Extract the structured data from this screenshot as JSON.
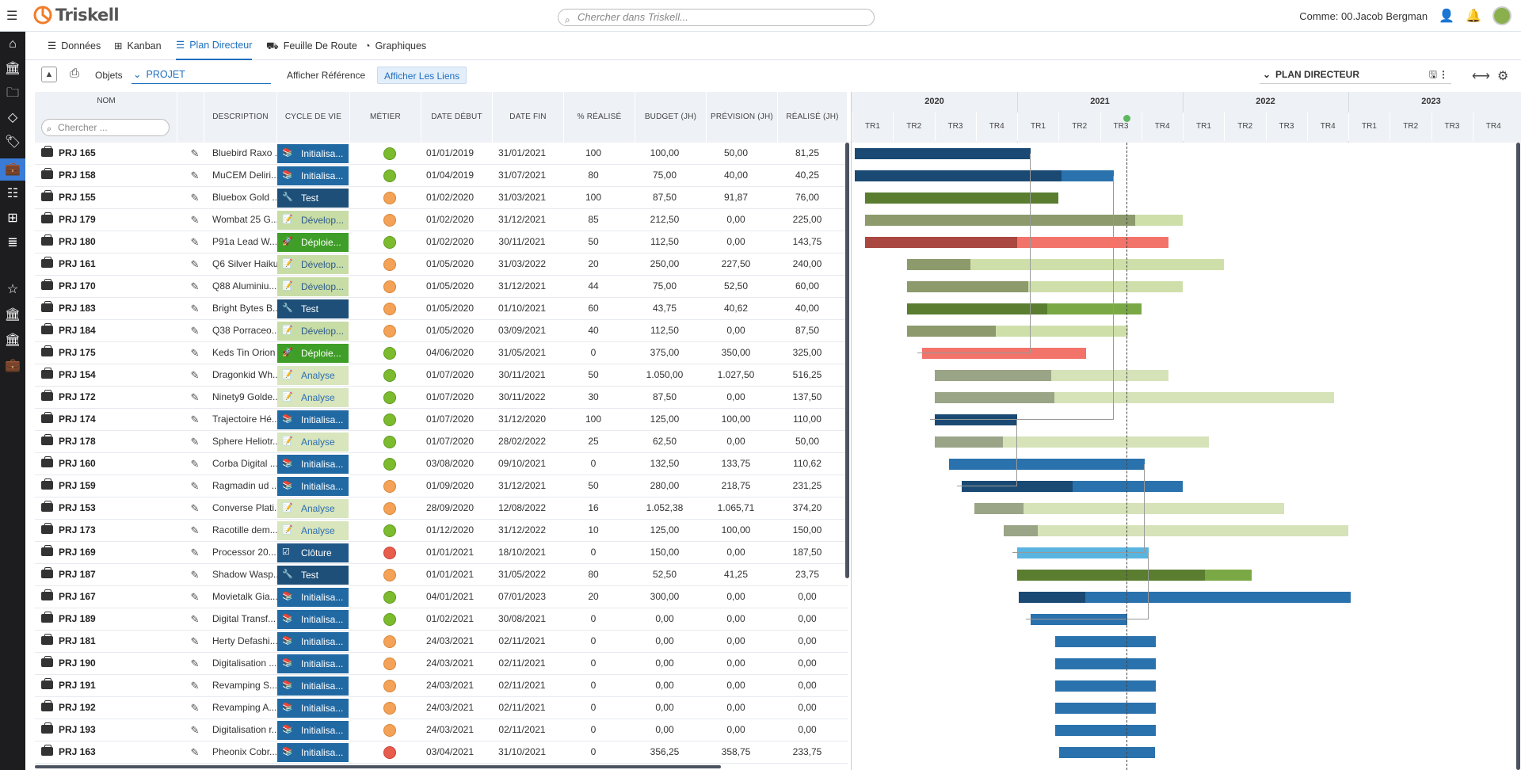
{
  "app": {
    "name": "Triskell"
  },
  "search": {
    "placeholder": "Chercher dans Triskell..."
  },
  "user": {
    "label": "Comme: 00.Jacob Bergman"
  },
  "tabs": [
    {
      "label": "Données"
    },
    {
      "label": "Kanban"
    },
    {
      "label": "Plan Directeur"
    },
    {
      "label": "Feuille De Route"
    },
    {
      "label": "Graphiques"
    }
  ],
  "toolbar": {
    "objets_label": "Objets",
    "selector_value": "PROJET",
    "afficher_reference": "Afficher Référence",
    "afficher_liens": "Afficher Les Liens",
    "plan_selector": "PLAN DIRECTEUR"
  },
  "grid": {
    "headers": {
      "nom": "NOM",
      "search_placeholder": "Chercher ...",
      "description": "DESCRIPTION",
      "cycle": "CYCLE DE VIE",
      "metier": "MÉTIER",
      "date_debut": "DATE DÉBUT",
      "date_fin": "DATE FIN",
      "realise_pct": "% RÉALISÉ",
      "budget": "BUDGET (JH)",
      "prevision": "PRÉVISION (JH)",
      "realise": "RÉALISÉ (JH)"
    },
    "rows": [
      {
        "nom": "PRJ 165",
        "desc": "Bluebird Raxo ...",
        "cycle": "Initialisa...",
        "cycle_type": "init",
        "metier": "green",
        "dd": "01/01/2019",
        "df": "31/01/2021",
        "pct": "100",
        "bud": "100,00",
        "prev": "50,00",
        "real": "81,25"
      },
      {
        "nom": "PRJ 158",
        "desc": "MuCEM Deliri...",
        "cycle": "Initialisa...",
        "cycle_type": "init",
        "metier": "green",
        "dd": "01/04/2019",
        "df": "31/07/2021",
        "pct": "80",
        "bud": "75,00",
        "prev": "40,00",
        "real": "40,25"
      },
      {
        "nom": "PRJ 155",
        "desc": "Bluebox Gold ...",
        "cycle": "Test",
        "cycle_type": "test",
        "metier": "orange",
        "dd": "01/02/2020",
        "df": "31/03/2021",
        "pct": "100",
        "bud": "87,50",
        "prev": "91,87",
        "real": "76,00"
      },
      {
        "nom": "PRJ 179",
        "desc": "Wombat 25 G...",
        "cycle": "Dévelop...",
        "cycle_type": "dev",
        "metier": "orange",
        "dd": "01/02/2020",
        "df": "31/12/2021",
        "pct": "85",
        "bud": "212,50",
        "prev": "0,00",
        "real": "225,00"
      },
      {
        "nom": "PRJ 180",
        "desc": "P91a Lead W...",
        "cycle": "Déploie...",
        "cycle_type": "dep",
        "metier": "green",
        "dd": "01/02/2020",
        "df": "30/11/2021",
        "pct": "50",
        "bud": "112,50",
        "prev": "0,00",
        "real": "143,75"
      },
      {
        "nom": "PRJ 161",
        "desc": "Q6 Silver Haiku",
        "cycle": "Dévelop...",
        "cycle_type": "dev",
        "metier": "orange",
        "dd": "01/05/2020",
        "df": "31/03/2022",
        "pct": "20",
        "bud": "250,00",
        "prev": "227,50",
        "real": "240,00"
      },
      {
        "nom": "PRJ 170",
        "desc": "Q88 Aluminiu...",
        "cycle": "Dévelop...",
        "cycle_type": "dev",
        "metier": "orange",
        "dd": "01/05/2020",
        "df": "31/12/2021",
        "pct": "44",
        "bud": "75,00",
        "prev": "52,50",
        "real": "60,00"
      },
      {
        "nom": "PRJ 183",
        "desc": "Bright Bytes B...",
        "cycle": "Test",
        "cycle_type": "test",
        "metier": "orange",
        "dd": "01/05/2020",
        "df": "01/10/2021",
        "pct": "60",
        "bud": "43,75",
        "prev": "40,62",
        "real": "40,00"
      },
      {
        "nom": "PRJ 184",
        "desc": "Q38 Porraceo...",
        "cycle": "Dévelop...",
        "cycle_type": "dev",
        "metier": "orange",
        "dd": "01/05/2020",
        "df": "03/09/2021",
        "pct": "40",
        "bud": "112,50",
        "prev": "0,00",
        "real": "87,50"
      },
      {
        "nom": "PRJ 175",
        "desc": "Keds Tin Orion",
        "cycle": "Déploie...",
        "cycle_type": "dep",
        "metier": "green",
        "dd": "04/06/2020",
        "df": "31/05/2021",
        "pct": "0",
        "bud": "375,00",
        "prev": "350,00",
        "real": "325,00"
      },
      {
        "nom": "PRJ 154",
        "desc": "Dragonkid Wh...",
        "cycle": "Analyse",
        "cycle_type": "ana",
        "metier": "green",
        "dd": "01/07/2020",
        "df": "30/11/2021",
        "pct": "50",
        "bud": "1.050,00",
        "prev": "1.027,50",
        "real": "516,25"
      },
      {
        "nom": "PRJ 172",
        "desc": "Ninety9 Golde...",
        "cycle": "Analyse",
        "cycle_type": "ana",
        "metier": "green",
        "dd": "01/07/2020",
        "df": "30/11/2022",
        "pct": "30",
        "bud": "87,50",
        "prev": "0,00",
        "real": "137,50"
      },
      {
        "nom": "PRJ 174",
        "desc": "Trajectoire Hé...",
        "cycle": "Initialisa...",
        "cycle_type": "init",
        "metier": "green",
        "dd": "01/07/2020",
        "df": "31/12/2020",
        "pct": "100",
        "bud": "125,00",
        "prev": "100,00",
        "real": "110,00"
      },
      {
        "nom": "PRJ 178",
        "desc": "Sphere Heliotr...",
        "cycle": "Analyse",
        "cycle_type": "ana",
        "metier": "green",
        "dd": "01/07/2020",
        "df": "28/02/2022",
        "pct": "25",
        "bud": "62,50",
        "prev": "0,00",
        "real": "50,00"
      },
      {
        "nom": "PRJ 160",
        "desc": "Corba Digital ...",
        "cycle": "Initialisa...",
        "cycle_type": "init",
        "metier": "green",
        "dd": "03/08/2020",
        "df": "09/10/2021",
        "pct": "0",
        "bud": "132,50",
        "prev": "133,75",
        "real": "110,62"
      },
      {
        "nom": "PRJ 159",
        "desc": "Ragmadin ud ...",
        "cycle": "Initialisa...",
        "cycle_type": "init",
        "metier": "orange",
        "dd": "01/09/2020",
        "df": "31/12/2021",
        "pct": "50",
        "bud": "280,00",
        "prev": "218,75",
        "real": "231,25"
      },
      {
        "nom": "PRJ 153",
        "desc": "Converse Plati...",
        "cycle": "Analyse",
        "cycle_type": "ana",
        "metier": "orange",
        "dd": "28/09/2020",
        "df": "12/08/2022",
        "pct": "16",
        "bud": "1.052,38",
        "prev": "1.065,71",
        "real": "374,20"
      },
      {
        "nom": "PRJ 173",
        "desc": "Racotille dem...",
        "cycle": "Analyse",
        "cycle_type": "ana",
        "metier": "green",
        "dd": "01/12/2020",
        "df": "31/12/2022",
        "pct": "10",
        "bud": "125,00",
        "prev": "100,00",
        "real": "150,00"
      },
      {
        "nom": "PRJ 169",
        "desc": "Processor 20...",
        "cycle": "Clôture",
        "cycle_type": "clo",
        "metier": "red",
        "dd": "01/01/2021",
        "df": "18/10/2021",
        "pct": "0",
        "bud": "150,00",
        "prev": "0,00",
        "real": "187,50"
      },
      {
        "nom": "PRJ 187",
        "desc": "Shadow Wasp...",
        "cycle": "Test",
        "cycle_type": "test",
        "metier": "orange",
        "dd": "01/01/2021",
        "df": "31/05/2022",
        "pct": "80",
        "bud": "52,50",
        "prev": "41,25",
        "real": "23,75"
      },
      {
        "nom": "PRJ 167",
        "desc": "Movietalk Gia...",
        "cycle": "Initialisa...",
        "cycle_type": "init",
        "metier": "green",
        "dd": "04/01/2021",
        "df": "07/01/2023",
        "pct": "20",
        "bud": "300,00",
        "prev": "0,00",
        "real": "0,00"
      },
      {
        "nom": "PRJ 189",
        "desc": "Digital Transf...",
        "cycle": "Initialisa...",
        "cycle_type": "init",
        "metier": "green",
        "dd": "01/02/2021",
        "df": "30/08/2021",
        "pct": "0",
        "bud": "0,00",
        "prev": "0,00",
        "real": "0,00"
      },
      {
        "nom": "PRJ 181",
        "desc": "Herty Defashi...",
        "cycle": "Initialisa...",
        "cycle_type": "init",
        "metier": "orange",
        "dd": "24/03/2021",
        "df": "02/11/2021",
        "pct": "0",
        "bud": "0,00",
        "prev": "0,00",
        "real": "0,00"
      },
      {
        "nom": "PRJ 190",
        "desc": "Digitalisation ...",
        "cycle": "Initialisa...",
        "cycle_type": "init",
        "metier": "orange",
        "dd": "24/03/2021",
        "df": "02/11/2021",
        "pct": "0",
        "bud": "0,00",
        "prev": "0,00",
        "real": "0,00"
      },
      {
        "nom": "PRJ 191",
        "desc": "Revamping S...",
        "cycle": "Initialisa...",
        "cycle_type": "init",
        "metier": "orange",
        "dd": "24/03/2021",
        "df": "02/11/2021",
        "pct": "0",
        "bud": "0,00",
        "prev": "0,00",
        "real": "0,00"
      },
      {
        "nom": "PRJ 192",
        "desc": "Revamping A...",
        "cycle": "Initialisa...",
        "cycle_type": "init",
        "metier": "orange",
        "dd": "24/03/2021",
        "df": "02/11/2021",
        "pct": "0",
        "bud": "0,00",
        "prev": "0,00",
        "real": "0,00"
      },
      {
        "nom": "PRJ 193",
        "desc": "Digitalisation r...",
        "cycle": "Initialisa...",
        "cycle_type": "init",
        "metier": "orange",
        "dd": "24/03/2021",
        "df": "02/11/2021",
        "pct": "0",
        "bud": "0,00",
        "prev": "0,00",
        "real": "0,00"
      },
      {
        "nom": "PRJ 163",
        "desc": "Pheonix Cobr...",
        "cycle": "Initialisa...",
        "cycle_type": "init",
        "metier": "red",
        "dd": "03/04/2021",
        "df": "31/10/2021",
        "pct": "0",
        "bud": "356,25",
        "prev": "358,75",
        "real": "233,75"
      }
    ]
  },
  "gantt": {
    "years": [
      "2020",
      "2021",
      "2022",
      "2023"
    ],
    "quarters": [
      "TR1",
      "TR2",
      "TR3",
      "TR4"
    ],
    "colors": {
      "init": [
        "#1a4a73",
        "#2a72ad"
      ],
      "test": [
        "#5a7d30",
        "#7aa844"
      ],
      "dev": [
        "#8c9a6c",
        "#cfdfaa"
      ],
      "dep": [
        "#a94740",
        "#f2736a"
      ],
      "ana": [
        "#9aa486",
        "#d6e2b8"
      ],
      "clo": [
        "#5ab4e0",
        "#5ab4e0"
      ]
    }
  }
}
